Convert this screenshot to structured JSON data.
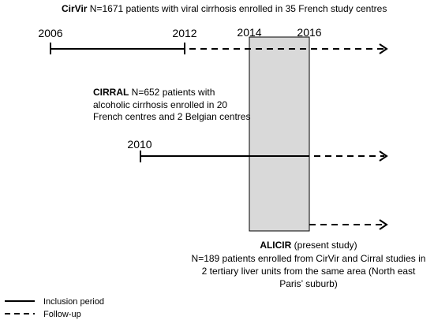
{
  "cirvir": {
    "name": "CirVir",
    "description": " N=1671 patients with viral cirrhosis enrolled in 35 French study centres"
  },
  "years": {
    "y2006": "2006",
    "y2012": "2012",
    "y2014": "2014",
    "y2016": "2016",
    "y2010": "2010"
  },
  "cirral": {
    "name": "CIRRAL",
    "line1": " N=652 patients with",
    "line2": "alcoholic cirrhosis enrolled in 20",
    "line3": "French centres  and 2 Belgian centres"
  },
  "alicir": {
    "name": "ALICIR",
    "tag": " (present study)",
    "line1": "N=189 patients enrolled from CirVir and Cirral studies in",
    "line2": "2 tertiary liver units from the same area (North east",
    "line3": "Paris’ suburb)"
  },
  "legend": {
    "inclusion": "Inclusion period",
    "followup": "Follow-up"
  },
  "colors": {
    "line": "#000000",
    "highlight_fill": "#d9d9d9",
    "highlight_stroke": "#000000"
  }
}
